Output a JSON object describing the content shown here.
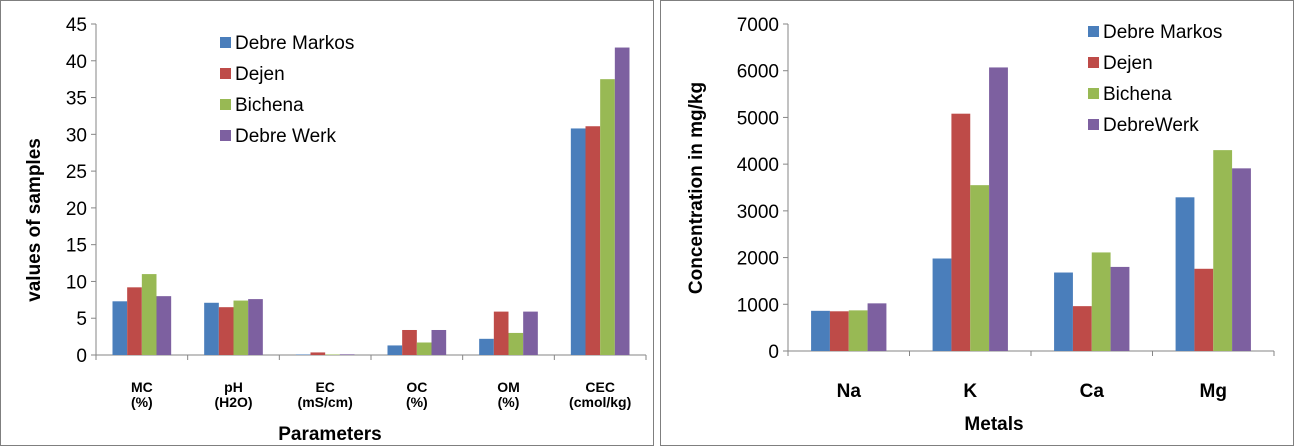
{
  "chart_data": [
    {
      "type": "bar",
      "categories": [
        "MC (%)",
        "pH (H2O)",
        "EC (mS/cm)",
        "OC (%)",
        "OM (%)",
        "CEC (cmol/kg)"
      ],
      "series": [
        {
          "name": "Debre Markos",
          "color": "#4a7ebb",
          "values": [
            7.3,
            7.1,
            0.07,
            1.3,
            2.2,
            30.8
          ]
        },
        {
          "name": "Dejen",
          "color": "#be4b48",
          "values": [
            9.2,
            6.5,
            0.35,
            3.4,
            5.9,
            31.1
          ]
        },
        {
          "name": "Bichena",
          "color": "#98b954",
          "values": [
            11.0,
            7.4,
            0.07,
            1.7,
            3.0,
            37.5
          ]
        },
        {
          "name": "Debre Werk",
          "color": "#7d60a0",
          "values": [
            8.0,
            7.6,
            0.09,
            3.4,
            5.9,
            41.8
          ]
        }
      ],
      "ylim": [
        0,
        45
      ],
      "yticks": [
        0,
        5,
        10,
        15,
        20,
        25,
        30,
        35,
        40,
        45
      ],
      "xlabel": "Parameters",
      "ylabel": "values of samples",
      "legend": "top-left inside plot",
      "grid": false
    },
    {
      "type": "bar",
      "categories": [
        "Na",
        "K",
        "Ca",
        "Mg"
      ],
      "series": [
        {
          "name": "Debre Markos",
          "color": "#4a7ebb",
          "values": [
            860,
            1980,
            1680,
            3290
          ]
        },
        {
          "name": "Dejen",
          "color": "#be4b48",
          "values": [
            850,
            5080,
            960,
            1760
          ]
        },
        {
          "name": "Bichena",
          "color": "#98b954",
          "values": [
            870,
            3550,
            2110,
            4300
          ]
        },
        {
          "name": "DebreWerk",
          "color": "#7d60a0",
          "values": [
            1020,
            6070,
            1800,
            3910
          ]
        }
      ],
      "ylim": [
        0,
        7000
      ],
      "yticks": [
        0,
        1000,
        2000,
        3000,
        4000,
        5000,
        6000,
        7000
      ],
      "xlabel": "Metals",
      "ylabel": "Concentration in mg/kg",
      "legend": "top-right inside plot",
      "grid": false
    }
  ]
}
